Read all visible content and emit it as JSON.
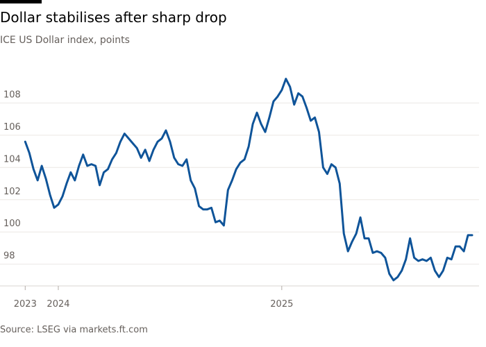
{
  "chart_data": {
    "type": "line",
    "title": "Dollar stabilises after sharp drop",
    "subtitle": "ICE US Dollar index, points",
    "source": "Source: LSEG via markets.ft.com",
    "categories": [
      "2023",
      null,
      null,
      null,
      null,
      null,
      null,
      null,
      "2024",
      null,
      null,
      null,
      null,
      null,
      null,
      null,
      null,
      null,
      null,
      null,
      null,
      null,
      null,
      null,
      null,
      null,
      null,
      null,
      null,
      null,
      null,
      null,
      null,
      null,
      null,
      null,
      null,
      null,
      null,
      null,
      null,
      null,
      null,
      null,
      null,
      null,
      null,
      null,
      null,
      null,
      null,
      null,
      null,
      null,
      null,
      null,
      null,
      null,
      null,
      null,
      null,
      null,
      "2025",
      null,
      null,
      null,
      null,
      null,
      null,
      null,
      null,
      null,
      null,
      null,
      null,
      null,
      null,
      null,
      null,
      null,
      null,
      null,
      null,
      null,
      null,
      null,
      null,
      null,
      null,
      null,
      null,
      null,
      null,
      null,
      null,
      null,
      null,
      null,
      null,
      null,
      null,
      null,
      null,
      null,
      null,
      null,
      null,
      null,
      null
    ],
    "series": [
      {
        "color": "#0f5499",
        "values": [
          105.6,
          104.9,
          103.9,
          103.2,
          104.1,
          103.3,
          102.3,
          101.5,
          101.7,
          102.2,
          103.0,
          103.7,
          103.2,
          104.1,
          104.8,
          104.1,
          104.2,
          104.1,
          102.9,
          103.7,
          103.9,
          104.5,
          104.9,
          105.6,
          106.1,
          105.8,
          105.5,
          105.2,
          104.6,
          105.1,
          104.4,
          105.1,
          105.6,
          105.8,
          106.3,
          105.6,
          104.6,
          104.2,
          104.1,
          104.5,
          103.2,
          102.7,
          101.6,
          101.4,
          101.4,
          101.5,
          100.6,
          100.7,
          100.4,
          102.6,
          103.2,
          103.9,
          104.3,
          104.5,
          105.3,
          106.7,
          107.4,
          106.7,
          106.2,
          107.1,
          108.1,
          108.4,
          108.8,
          109.5,
          109.0,
          107.9,
          108.6,
          108.4,
          107.7,
          106.9,
          107.1,
          106.2,
          104.0,
          103.6,
          104.2,
          104.0,
          103.0,
          99.9,
          98.8,
          99.4,
          99.9,
          100.9,
          99.6,
          99.6,
          98.7,
          98.8,
          98.7,
          98.4,
          97.4,
          97.0,
          97.2,
          97.6,
          98.3,
          99.6,
          98.4,
          98.2,
          98.3,
          98.2,
          98.4,
          97.6,
          97.2,
          97.6,
          98.4,
          98.3,
          99.1,
          99.1,
          98.8,
          99.8,
          99.8
        ]
      }
    ],
    "ylim": [
      96.65,
      110.3
    ],
    "yticks": [
      98,
      100,
      102,
      104,
      106,
      108
    ],
    "grid": true
  }
}
